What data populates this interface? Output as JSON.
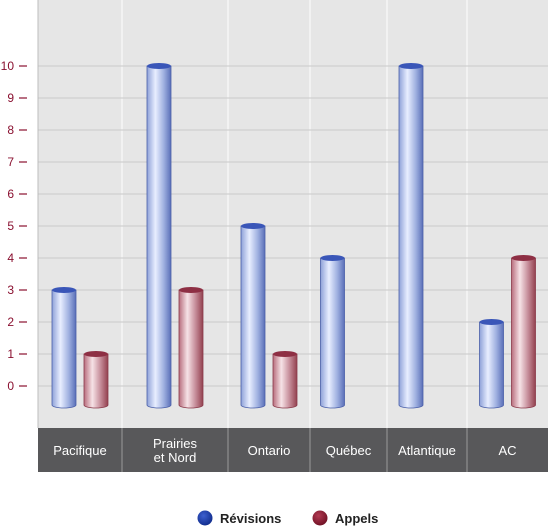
{
  "chart_data": {
    "type": "bar",
    "categories": [
      [
        "Pacifique"
      ],
      [
        "Prairies",
        "et Nord"
      ],
      [
        "Ontario"
      ],
      [
        "Québec"
      ],
      [
        "Atlantique"
      ],
      [
        "AC"
      ]
    ],
    "series": [
      {
        "name": "Révisions",
        "values": [
          3,
          10,
          5,
          4,
          10,
          2
        ],
        "color": "#1e3aa0"
      },
      {
        "name": "Appels",
        "values": [
          1,
          3,
          1,
          0,
          0,
          4
        ],
        "color": "#8e1a33"
      }
    ],
    "yticks": [
      0,
      1,
      2,
      3,
      4,
      5,
      6,
      7,
      8,
      9,
      10
    ],
    "ylim": [
      0,
      11
    ],
    "grid": true,
    "legend_position": "bottom-center",
    "colors": {
      "plot_background": "#e6e6e6",
      "category_band": "#58585a",
      "grid_line": "#c9c9c9",
      "tick_label": "#8a1030"
    }
  }
}
